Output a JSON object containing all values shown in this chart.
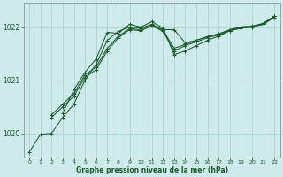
{
  "xlabel": "Graphe pression niveau de la mer (hPa)",
  "ylabel": "",
  "bg_color": "#ceeaea",
  "grid_color": "#aad4d4",
  "line_color": "#1a5c2a",
  "marker_color": "#1a5c2a",
  "ylim": [
    1019.55,
    1022.45
  ],
  "xlim": [
    -0.5,
    22.5
  ],
  "yticks": [
    1020,
    1021,
    1022
  ],
  "xticks": [
    0,
    1,
    2,
    3,
    4,
    5,
    6,
    7,
    8,
    9,
    10,
    11,
    12,
    13,
    14,
    15,
    16,
    17,
    18,
    19,
    20,
    21,
    22
  ],
  "series": [
    [
      1019.65,
      1019.98,
      1020.0,
      1020.3,
      1020.55,
      1021.0,
      1021.3,
      1021.75,
      1021.92,
      1022.0,
      1021.98,
      1022.05,
      1021.95,
      1021.95,
      1021.7,
      1021.75,
      1021.82,
      1021.87,
      1021.95,
      1022.0,
      1022.02,
      1022.05,
      1022.2
    ],
    [
      null,
      null,
      1020.3,
      1020.5,
      1020.7,
      1021.05,
      1021.2,
      1021.55,
      1021.8,
      1021.95,
      1021.93,
      1022.02,
      1021.92,
      1021.55,
      1021.65,
      1021.72,
      1021.8,
      1021.85,
      1021.93,
      1021.98,
      1022.0,
      1022.05,
      1022.18
    ],
    [
      null,
      null,
      1020.35,
      1020.55,
      1020.75,
      1021.1,
      1021.25,
      1021.6,
      1021.83,
      1021.97,
      1021.95,
      1022.04,
      1021.94,
      1021.6,
      1021.67,
      1021.75,
      1021.82,
      1021.87,
      1021.94,
      1022.0,
      1022.01,
      1022.07,
      1022.2
    ],
    [
      null,
      null,
      null,
      1020.38,
      1020.82,
      1021.15,
      1021.4,
      1021.9,
      1021.88,
      1022.05,
      1022.0,
      1022.1,
      1021.98,
      1021.48,
      1021.55,
      1021.65,
      1021.75,
      1021.83,
      1021.93,
      1021.98,
      1022.0,
      1022.07,
      1022.2
    ]
  ]
}
